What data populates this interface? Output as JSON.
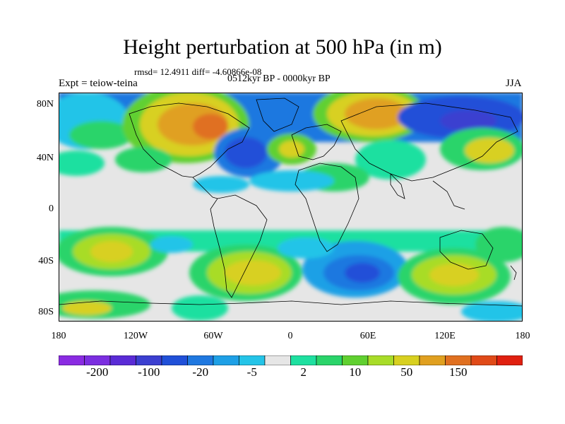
{
  "title": "Height perturbation at 500 hPa (in m)",
  "stats": "rmsd= 12.4911 diff= -4.60866e-08",
  "period": "0512kyr BP - 0000kyr BP",
  "experiment": "Expt = teiow-teina",
  "season": "JJA",
  "lat_labels": [
    "80N",
    "40N",
    "0",
    "40S",
    "80S"
  ],
  "lon_labels": [
    "180",
    "120W",
    "60W",
    "0",
    "60E",
    "120E",
    "180"
  ],
  "colorbar": {
    "colors": [
      "#8a2be2",
      "#7b2ee0",
      "#5a2bd6",
      "#3b3fd0",
      "#2050d8",
      "#1f78e0",
      "#1ea0e6",
      "#24c4e8",
      "#e6e6e6",
      "#1ee0a0",
      "#2ad46a",
      "#60d030",
      "#a8dc28",
      "#d8d020",
      "#e0a020",
      "#e07020",
      "#e04a18",
      "#e02010"
    ],
    "labels": [
      "-200",
      "-100",
      "-20",
      "-5",
      "2",
      "10",
      "50",
      "150"
    ]
  }
}
